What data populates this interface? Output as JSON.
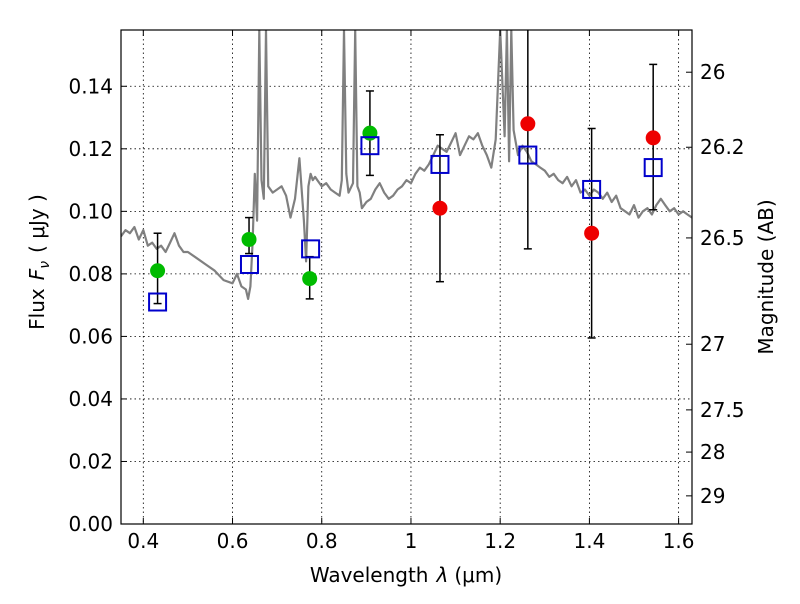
{
  "chart_data": {
    "type": "scatter",
    "xlabel_prefix": "Wavelength",
    "xlabel_symbol": "λ",
    "xlabel_unit": "(μm)",
    "ylabel_prefix": "Flux",
    "ylabel_symbol": "F",
    "ylabel_sub": "ν",
    "ylabel_unit": "( μJy )",
    "y2label": "Magnitude (AB)",
    "xlim": [
      0.35,
      1.63
    ],
    "ylim": [
      0.0,
      0.158
    ],
    "grid": true,
    "x_ticks": [
      0.4,
      0.6,
      0.8,
      1.0,
      1.2,
      1.4,
      1.6
    ],
    "x_tick_labels": [
      "0.4",
      "0.6",
      "0.8",
      "1",
      "1.2",
      "1.4",
      "1.6"
    ],
    "y_ticks": [
      0.0,
      0.02,
      0.04,
      0.06,
      0.08,
      0.1,
      0.12,
      0.14
    ],
    "y_tick_labels": [
      "0.00",
      "0.02",
      "0.04",
      "0.06",
      "0.08",
      "0.10",
      "0.12",
      "0.14"
    ],
    "y2_ticks": [
      {
        "label": "26",
        "flux": 0.1445
      },
      {
        "label": "26.2",
        "flux": 0.1205
      },
      {
        "label": "26.5",
        "flux": 0.0915
      },
      {
        "label": "27",
        "flux": 0.0575
      },
      {
        "label": "27.5",
        "flux": 0.0365
      },
      {
        "label": "28",
        "flux": 0.023
      },
      {
        "label": "29",
        "flux": 0.009
      }
    ],
    "model_spectrum": {
      "color": "#808080",
      "x": [
        0.35,
        0.36,
        0.37,
        0.38,
        0.39,
        0.4,
        0.41,
        0.42,
        0.43,
        0.44,
        0.45,
        0.46,
        0.47,
        0.48,
        0.49,
        0.5,
        0.52,
        0.54,
        0.56,
        0.58,
        0.6,
        0.61,
        0.62,
        0.63,
        0.635,
        0.64,
        0.645,
        0.65,
        0.655,
        0.66,
        0.665,
        0.67,
        0.675,
        0.68,
        0.69,
        0.7,
        0.71,
        0.72,
        0.73,
        0.74,
        0.75,
        0.76,
        0.765,
        0.77,
        0.775,
        0.78,
        0.785,
        0.79,
        0.8,
        0.81,
        0.82,
        0.83,
        0.84,
        0.845,
        0.85,
        0.855,
        0.86,
        0.87,
        0.875,
        0.88,
        0.885,
        0.89,
        0.9,
        0.91,
        0.92,
        0.93,
        0.94,
        0.95,
        0.96,
        0.97,
        0.98,
        0.99,
        1.0,
        1.01,
        1.02,
        1.03,
        1.04,
        1.05,
        1.06,
        1.07,
        1.08,
        1.09,
        1.1,
        1.11,
        1.12,
        1.13,
        1.14,
        1.15,
        1.16,
        1.17,
        1.18,
        1.19,
        1.2,
        1.21,
        1.215,
        1.22,
        1.225,
        1.23,
        1.24,
        1.25,
        1.26,
        1.27,
        1.28,
        1.29,
        1.3,
        1.31,
        1.32,
        1.33,
        1.34,
        1.35,
        1.36,
        1.37,
        1.38,
        1.39,
        1.4,
        1.41,
        1.42,
        1.43,
        1.44,
        1.45,
        1.46,
        1.47,
        1.48,
        1.49,
        1.5,
        1.51,
        1.52,
        1.53,
        1.54,
        1.55,
        1.56,
        1.57,
        1.58,
        1.59,
        1.6,
        1.61,
        1.62,
        1.63
      ],
      "y": [
        0.092,
        0.094,
        0.093,
        0.095,
        0.091,
        0.094,
        0.089,
        0.09,
        0.088,
        0.089,
        0.087,
        0.09,
        0.093,
        0.089,
        0.087,
        0.087,
        0.085,
        0.083,
        0.081,
        0.078,
        0.077,
        0.08,
        0.076,
        0.075,
        0.072,
        0.076,
        0.09,
        0.112,
        0.097,
        0.158,
        0.11,
        0.104,
        0.158,
        0.108,
        0.106,
        0.107,
        0.108,
        0.105,
        0.098,
        0.104,
        0.117,
        0.097,
        0.084,
        0.108,
        0.112,
        0.11,
        0.111,
        0.11,
        0.108,
        0.109,
        0.107,
        0.106,
        0.105,
        0.11,
        0.158,
        0.112,
        0.106,
        0.109,
        0.158,
        0.108,
        0.106,
        0.101,
        0.103,
        0.104,
        0.107,
        0.109,
        0.106,
        0.104,
        0.105,
        0.107,
        0.108,
        0.11,
        0.109,
        0.112,
        0.114,
        0.113,
        0.115,
        0.118,
        0.121,
        0.12,
        0.119,
        0.122,
        0.125,
        0.118,
        0.121,
        0.124,
        0.123,
        0.125,
        0.121,
        0.118,
        0.114,
        0.123,
        0.158,
        0.124,
        0.158,
        0.116,
        0.158,
        0.126,
        0.118,
        0.121,
        0.119,
        0.116,
        0.115,
        0.114,
        0.113,
        0.111,
        0.112,
        0.11,
        0.109,
        0.111,
        0.108,
        0.11,
        0.106,
        0.107,
        0.105,
        0.107,
        0.106,
        0.104,
        0.106,
        0.103,
        0.105,
        0.101,
        0.1,
        0.099,
        0.102,
        0.098,
        0.1,
        0.101,
        0.099,
        0.102,
        0.104,
        0.102,
        0.1,
        0.101,
        0.099,
        0.1,
        0.099,
        0.098
      ],
      "spike_pairs": [
        [
          0.655,
          0.158
        ],
        [
          0.672,
          0.158
        ],
        [
          0.85,
          0.158
        ],
        [
          0.873,
          0.158
        ],
        [
          1.215,
          0.158
        ],
        [
          1.225,
          0.158
        ]
      ]
    },
    "model_photometry": {
      "color": "#0000cc",
      "marker": "open-square",
      "x": [
        0.432,
        0.638,
        0.775,
        0.908,
        1.065,
        1.262,
        1.405,
        1.543
      ],
      "y": [
        0.071,
        0.083,
        0.088,
        0.121,
        0.115,
        0.118,
        0.107,
        0.114
      ]
    },
    "observed_green": {
      "color": "#00bb00",
      "x": [
        0.432,
        0.637,
        0.773,
        0.908
      ],
      "y": [
        0.081,
        0.091,
        0.0785,
        0.125
      ],
      "yerr_low": [
        0.0705,
        0.0865,
        0.072,
        0.1115
      ],
      "yerr_high": [
        0.093,
        0.098,
        0.0855,
        0.1385
      ]
    },
    "observed_red": {
      "color": "#ee0000",
      "x": [
        1.065,
        1.262,
        1.405,
        1.543
      ],
      "y": [
        0.101,
        0.128,
        0.093,
        0.1235
      ],
      "yerr_low": [
        0.0775,
        0.088,
        0.0595,
        0.1005
      ],
      "yerr_high": [
        0.1245,
        0.158,
        0.1265,
        0.147
      ]
    }
  }
}
